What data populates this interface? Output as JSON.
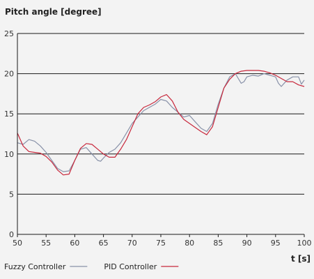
{
  "chart_data": {
    "type": "line",
    "ylabel": "Pitch angle [degree]",
    "xlabel": "t [s]",
    "xlim": [
      50,
      100
    ],
    "ylim": [
      0,
      25
    ],
    "xticks": [
      50,
      55,
      60,
      65,
      70,
      75,
      80,
      85,
      90,
      95,
      100
    ],
    "yticks": [
      0,
      5,
      10,
      15,
      20,
      25
    ],
    "grid": "horizontal",
    "legend_position": "bottom-left",
    "series": [
      {
        "name": "Fuzzy Controller",
        "color": "#8891a8",
        "x": [
          50,
          51,
          52,
          53,
          54,
          55,
          56,
          57,
          58,
          59,
          60,
          61,
          62,
          63,
          64,
          64.5,
          65,
          66,
          67,
          68,
          69,
          70,
          71,
          72,
          73,
          74,
          75,
          76,
          77,
          78,
          79,
          80,
          81,
          82,
          83,
          84,
          85,
          86,
          87,
          88,
          88.5,
          89,
          89.5,
          90,
          91,
          92,
          93,
          94,
          95,
          95.5,
          96,
          97,
          98,
          99,
          99.5,
          100
        ],
        "y": [
          11.4,
          11.2,
          11.8,
          11.6,
          11.0,
          10.2,
          9.2,
          8.2,
          7.8,
          7.9,
          9.2,
          10.6,
          10.8,
          10.0,
          9.2,
          9.1,
          9.5,
          10.2,
          10.6,
          11.4,
          12.6,
          13.8,
          14.6,
          15.4,
          15.8,
          16.2,
          16.8,
          16.6,
          15.8,
          15.2,
          14.6,
          14.8,
          14.0,
          13.2,
          12.8,
          13.8,
          16.2,
          18.2,
          19.6,
          20.0,
          19.4,
          18.8,
          19.0,
          19.6,
          19.8,
          19.7,
          20.0,
          19.8,
          19.6,
          18.8,
          18.4,
          19.2,
          19.6,
          19.6,
          18.7,
          19.2
        ]
      },
      {
        "name": "PID Controller",
        "color": "#c8283c",
        "x": [
          50,
          51,
          52,
          53,
          54,
          55,
          56,
          57,
          58,
          59,
          60,
          61,
          62,
          63,
          64,
          65,
          66,
          67,
          68,
          69,
          70,
          71,
          72,
          73,
          74,
          75,
          76,
          77,
          78,
          79,
          80,
          81,
          82,
          83,
          84,
          85,
          86,
          87,
          88,
          89,
          90,
          91,
          92,
          93,
          94,
          95,
          96,
          97,
          98,
          99,
          100
        ],
        "y": [
          12.6,
          11.0,
          10.3,
          10.2,
          10.1,
          9.7,
          9.0,
          8.0,
          7.4,
          7.5,
          9.2,
          10.7,
          11.3,
          11.2,
          10.6,
          10.0,
          9.6,
          9.6,
          10.6,
          11.8,
          13.4,
          15.0,
          15.8,
          16.1,
          16.5,
          17.1,
          17.4,
          16.6,
          15.2,
          14.3,
          13.8,
          13.3,
          12.8,
          12.4,
          13.4,
          15.8,
          18.2,
          19.3,
          20.0,
          20.3,
          20.4,
          20.4,
          20.4,
          20.3,
          20.1,
          19.8,
          19.4,
          19.0,
          19.0,
          18.6,
          18.4
        ]
      }
    ]
  }
}
